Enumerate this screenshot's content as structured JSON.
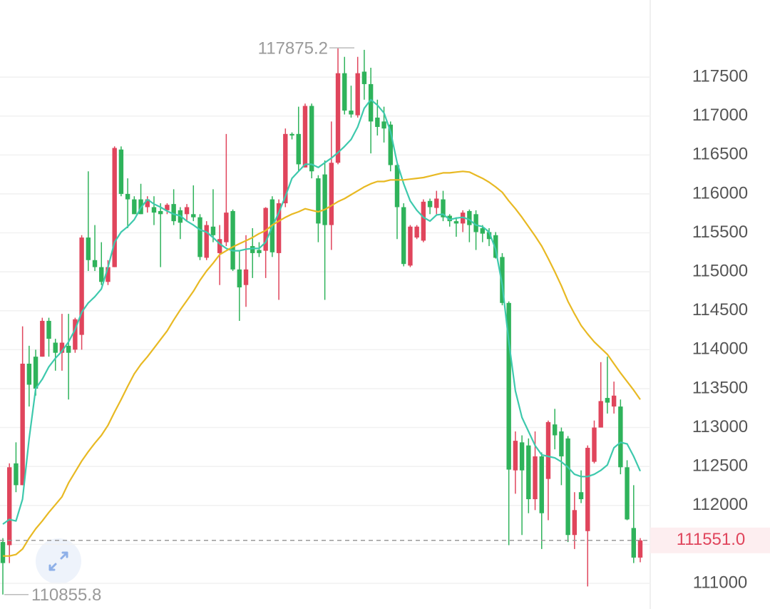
{
  "chart_data": {
    "type": "candlestick",
    "up_color": "#e0455c",
    "down_color": "#2fb35b",
    "open": [
      111530,
      111490,
      112540,
      112260,
      113820,
      113910,
      113910,
      114370,
      114090,
      113960,
      114050,
      114000,
      114190,
      115440,
      115150,
      115060,
      114870,
      115060,
      116570,
      116000,
      115930,
      115930,
      115830,
      115830,
      115780,
      115790,
      115870,
      115790,
      115740,
      115740,
      115700,
      115180,
      115580,
      115240,
      115380,
      115780,
      115030,
      114830,
      115330,
      115280,
      115270,
      115930,
      115240,
      115880,
      116770,
      116770,
      116340,
      117130,
      116200,
      116250,
      115600,
      116400,
      117550,
      117070,
      117010,
      117570,
      117410,
      116980,
      116930,
      116890,
      116370,
      115830,
      115080,
      115440,
      115400,
      115910,
      115820,
      115930,
      115720,
      115650,
      115620,
      115780,
      115740,
      115560,
      115510,
      115470,
      115190,
      114600,
      112450,
      112810,
      112770,
      112080,
      112630,
      112340,
      113040,
      112950,
      112860,
      111620,
      112170,
      111670,
      112560,
      113000,
      113380,
      113270,
      113270,
      112490,
      111710,
      111330
    ],
    "high": [
      111580,
      112540,
      112810,
      114300,
      114050,
      114000,
      114410,
      114410,
      114140,
      114460,
      114460,
      114410,
      115470,
      116290,
      115600,
      115380,
      115150,
      116610,
      116610,
      116200,
      115970,
      116130,
      115970,
      115970,
      115880,
      115880,
      116060,
      115830,
      115870,
      116110,
      115740,
      115650,
      116060,
      115600,
      116770,
      115800,
      115280,
      115470,
      115560,
      115380,
      115830,
      115970,
      115930,
      116840,
      116790,
      117120,
      117160,
      117160,
      116240,
      116430,
      116930,
      117875.2,
      117760,
      117390,
      117760,
      117850,
      117620,
      117210,
      117120,
      116930,
      116380,
      115880,
      115600,
      115600,
      115930,
      115940,
      116040,
      116040,
      115740,
      115700,
      115790,
      115800,
      115790,
      115600,
      115560,
      115510,
      115240,
      114620,
      112950,
      112900,
      112860,
      112950,
      112680,
      113090,
      113240,
      113000,
      112890,
      112170,
      112450,
      112770,
      113090,
      113840,
      113910,
      113590,
      113360,
      112580,
      112260,
      111580
    ],
    "low": [
      110855.8,
      111260,
      112170,
      112260,
      113270,
      113410,
      113910,
      113910,
      113730,
      113730,
      113360,
      113960,
      114000,
      115010,
      115010,
      114830,
      114830,
      115060,
      115970,
      115560,
      115740,
      115740,
      115760,
      115600,
      115060,
      115740,
      115600,
      115420,
      115650,
      115650,
      115150,
      115150,
      115380,
      114830,
      115330,
      115010,
      114370,
      114550,
      114920,
      115190,
      114920,
      115190,
      114640,
      115830,
      116700,
      116290,
      116340,
      116200,
      115380,
      114640,
      115280,
      116380,
      117020,
      116980,
      116980,
      117210,
      116520,
      116750,
      116660,
      116290,
      115420,
      115070,
      115060,
      115420,
      115380,
      115740,
      115740,
      115650,
      115580,
      115450,
      115510,
      115380,
      115280,
      115380,
      115330,
      115170,
      114570,
      111490,
      112150,
      111620,
      111900,
      111940,
      111440,
      111810,
      112720,
      112260,
      111530,
      111440,
      112030,
      110960,
      112540,
      113000,
      113180,
      113180,
      112400,
      111810,
      111260,
      111270
    ],
    "close": [
      111260,
      112490,
      112260,
      113820,
      113550,
      113500,
      114370,
      114140,
      113960,
      114090,
      113960,
      114390,
      115440,
      115150,
      115060,
      114870,
      115060,
      116590,
      116000,
      115930,
      115740,
      115740,
      115930,
      115760,
      115740,
      115860,
      115650,
      115630,
      115830,
      115700,
      115190,
      115600,
      115470,
      115420,
      115760,
      115030,
      114800,
      115030,
      115240,
      115240,
      115820,
      115250,
      115880,
      116770,
      116750,
      116380,
      117130,
      116290,
      115620,
      115600,
      116400,
      117550,
      117070,
      117020,
      117550,
      117410,
      116930,
      116860,
      116840,
      116370,
      115830,
      115100,
      115580,
      115580,
      115900,
      115830,
      115940,
      115700,
      115650,
      115620,
      115760,
      115600,
      115510,
      115490,
      115420,
      115180,
      114600,
      112460,
      112830,
      112450,
      112080,
      112630,
      111900,
      113070,
      112900,
      112630,
      111620,
      111940,
      112080,
      112740,
      113000,
      113340,
      113320,
      113410,
      112490,
      111820,
      111330,
      111551
    ],
    "lines": [
      {
        "color": "#3ec9ad",
        "values": [
          111760,
          111820,
          111800,
          112080,
          112860,
          113500,
          113620,
          113780,
          113890,
          113980,
          114100,
          114260,
          114480,
          114600,
          114680,
          114780,
          115060,
          115380,
          115510,
          115580,
          115670,
          115820,
          115930,
          115870,
          115830,
          115780,
          115740,
          115720,
          115650,
          115600,
          115540,
          115510,
          115440,
          115360,
          115300,
          115270,
          115270,
          115290,
          115300,
          115300,
          115380,
          115580,
          115760,
          115970,
          116200,
          116290,
          116380,
          116380,
          116340,
          116400,
          116460,
          116530,
          116610,
          116700,
          116860,
          117100,
          117210,
          117140,
          117040,
          116800,
          116400,
          116130,
          115910,
          115790,
          115700,
          115650,
          115730,
          115740,
          115670,
          115690,
          115700,
          115670,
          115600,
          115580,
          115510,
          115290,
          114830,
          114100,
          113470,
          113130,
          112950,
          112770,
          112650,
          112630,
          112610,
          112560,
          112490,
          112400,
          112370,
          112370,
          112400,
          112450,
          112520,
          112740,
          112810,
          112790,
          112630,
          112440
        ]
      },
      {
        "color": "#e8b923",
        "values": [
          111350,
          111350,
          111370,
          111440,
          111580,
          111700,
          111800,
          111910,
          112010,
          112110,
          112290,
          112430,
          112570,
          112690,
          112800,
          112900,
          113030,
          113200,
          113360,
          113530,
          113690,
          113810,
          113910,
          114020,
          114130,
          114240,
          114380,
          114510,
          114630,
          114750,
          114890,
          115010,
          115110,
          115220,
          115270,
          115320,
          115360,
          115400,
          115440,
          115490,
          115530,
          115600,
          115650,
          115700,
          115740,
          115770,
          115810,
          115790,
          115770,
          115800,
          115850,
          115900,
          115940,
          115990,
          116040,
          116090,
          116130,
          116160,
          116160,
          116180,
          116180,
          116180,
          116190,
          116200,
          116210,
          116230,
          116250,
          116270,
          116270,
          116280,
          116290,
          116280,
          116240,
          116200,
          116150,
          116090,
          116020,
          115910,
          115810,
          115700,
          115580,
          115460,
          115330,
          115170,
          115000,
          114820,
          114620,
          114460,
          114310,
          114200,
          114100,
          114020,
          113940,
          113820,
          113700,
          113590,
          113480,
          113360
        ]
      }
    ],
    "ylim": [
      110670,
      118490
    ],
    "yticks": [
      111000,
      111500,
      112000,
      112500,
      113000,
      113500,
      114000,
      114500,
      115000,
      115500,
      116000,
      116500,
      117000,
      117500
    ],
    "grid": true,
    "max_label": 117875.2,
    "min_label": 110855.8,
    "last_price": {
      "value": 111551,
      "label": "111551.0"
    }
  }
}
